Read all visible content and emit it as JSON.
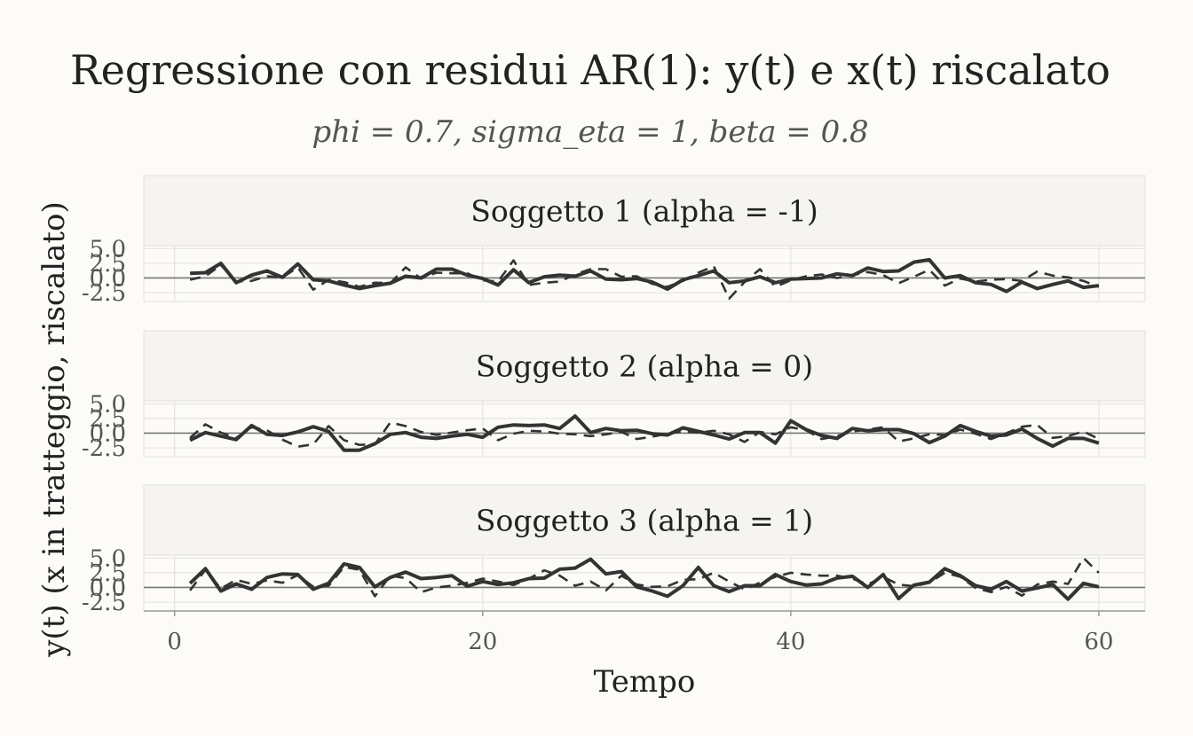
{
  "chart_data": {
    "type": "line",
    "title": "Regressione con residui AR(1): y(t) e x(t) riscalato",
    "subtitle": "phi = 0.7, sigma_eta = 1, beta = 0.8",
    "xlabel": "Tempo",
    "ylabel": "y(t)  (x in tratteggio, riscalato)",
    "xlim": [
      -2,
      63
    ],
    "x_ticks": [
      0,
      20,
      40,
      60
    ],
    "ylim": [
      -4,
      5.5
    ],
    "y_ticks": [
      -2.5,
      0.0,
      2.5,
      5.0
    ],
    "y_tick_labels": [
      "-2.5",
      "0.0",
      "2.5",
      "5.0"
    ],
    "x": [
      1,
      2,
      3,
      4,
      5,
      6,
      7,
      8,
      9,
      10,
      11,
      12,
      13,
      14,
      15,
      16,
      17,
      18,
      19,
      20,
      21,
      22,
      23,
      24,
      25,
      26,
      27,
      28,
      29,
      30,
      31,
      32,
      33,
      34,
      35,
      36,
      37,
      38,
      39,
      40,
      41,
      42,
      43,
      44,
      45,
      46,
      47,
      48,
      49,
      50,
      51,
      52,
      53,
      54,
      55,
      56,
      57,
      58,
      59,
      60
    ],
    "grid": true,
    "colors": {
      "line": "#333333",
      "background": "#fcfbf7",
      "strip": "#f5f4f0",
      "grid": "#e6e4df",
      "hline": "#777777"
    },
    "panels": [
      {
        "strip": "Soggetto 1 (alpha = -1)",
        "series": [
          {
            "style": "solid",
            "values": [
              0.8,
              0.9,
              2.5,
              -0.8,
              0.5,
              1.2,
              0.1,
              2.4,
              -0.3,
              -0.5,
              -1.2,
              -1.8,
              -1.3,
              -0.9,
              0.3,
              0.0,
              1.5,
              1.5,
              0.5,
              -0.1,
              -1.2,
              1.4,
              -0.8,
              0.2,
              0.5,
              0.3,
              1.2,
              -0.2,
              -0.3,
              -0.1,
              -0.7,
              -1.9,
              -0.3,
              0.4,
              1.2,
              -0.8,
              -0.5,
              0.2,
              -0.8,
              -0.2,
              -0.1,
              0.0,
              0.7,
              0.4,
              1.7,
              1.1,
              1.2,
              2.7,
              3.1,
              0.0,
              0.4,
              -0.8,
              -1.1,
              -2.3,
              -0.7,
              -1.8,
              -1.1,
              -0.5,
              -1.6,
              -1.3
            ]
          },
          {
            "style": "dashed",
            "values": [
              -0.3,
              0.3,
              2.2,
              -0.6,
              -0.5,
              0.3,
              0.1,
              1.8,
              -2.0,
              -0.3,
              -0.7,
              -1.5,
              -0.8,
              -0.9,
              1.8,
              -0.1,
              0.9,
              0.8,
              0.8,
              -0.4,
              -0.6,
              3.0,
              -1.2,
              -0.8,
              -0.6,
              0.6,
              1.5,
              1.5,
              0.2,
              0.3,
              -1.0,
              -1.5,
              -0.5,
              0.9,
              2.0,
              -3.5,
              -0.7,
              1.5,
              -1.5,
              -0.4,
              0.3,
              0.6,
              0.0,
              0.5,
              1.0,
              0.5,
              -0.9,
              0.2,
              1.4,
              -1.3,
              -0.1,
              -0.6,
              -0.3,
              -0.2,
              -0.5,
              1.1,
              0.4,
              0.1,
              -0.5,
              -1.5
            ]
          }
        ]
      },
      {
        "strip": "Soggetto 2 (alpha = 0)",
        "series": [
          {
            "style": "solid",
            "values": [
              -1.2,
              0.1,
              -0.5,
              -1.1,
              1.3,
              -0.2,
              -0.4,
              0.2,
              1.1,
              0.3,
              -2.9,
              -2.9,
              -1.8,
              -0.2,
              0.1,
              -0.7,
              -0.9,
              -0.5,
              -0.2,
              -0.7,
              1.0,
              1.4,
              1.3,
              1.4,
              0.8,
              2.9,
              0.1,
              0.8,
              0.4,
              0.5,
              -0.1,
              -0.3,
              0.9,
              0.3,
              -0.3,
              -1.0,
              0.1,
              0.1,
              -1.7,
              2.1,
              0.6,
              -0.4,
              -0.9,
              0.8,
              0.4,
              0.6,
              0.6,
              -0.1,
              -1.6,
              -0.5,
              1.3,
              0.3,
              -0.5,
              -0.3,
              0.7,
              -0.9,
              -2.2,
              -0.9,
              -0.9,
              -1.7
            ]
          },
          {
            "style": "dashed",
            "values": [
              -0.8,
              1.5,
              0.1,
              -0.8,
              1.0,
              0.5,
              -1.1,
              -2.3,
              -1.9,
              1.2,
              -1.2,
              -2.0,
              -1.9,
              1.8,
              1.2,
              0.2,
              -0.3,
              0.1,
              0.5,
              0.8,
              -1.2,
              -0.1,
              0.4,
              0.3,
              -0.1,
              -0.2,
              -0.5,
              -0.2,
              0.2,
              -1.0,
              -0.6,
              -0.1,
              0.3,
              0.1,
              0.4,
              -0.2,
              -1.5,
              0.2,
              -0.2,
              1.0,
              0.5,
              -1.0,
              -0.5,
              0.3,
              0.6,
              1.0,
              -1.4,
              -0.9,
              -0.2,
              -0.3,
              0.6,
              -0.1,
              -1.0,
              0.0,
              1.1,
              1.4,
              -0.8,
              -0.5,
              0.3,
              -1.0
            ]
          }
        ]
      },
      {
        "strip": "Soggetto 3 (alpha = 1)",
        "series": [
          {
            "style": "solid",
            "values": [
              0.7,
              3.2,
              -0.6,
              0.6,
              -0.3,
              1.7,
              2.3,
              2.2,
              -0.3,
              0.7,
              4.0,
              3.4,
              0.1,
              1.7,
              2.6,
              1.5,
              1.7,
              2.0,
              0.2,
              1.0,
              0.5,
              0.8,
              1.5,
              1.6,
              3.1,
              3.3,
              4.8,
              2.3,
              2.7,
              0.1,
              -0.6,
              -1.5,
              0.3,
              3.4,
              0.3,
              -0.7,
              0.3,
              0.3,
              2.2,
              1.0,
              0.4,
              0.6,
              1.6,
              1.9,
              0.0,
              2.2,
              -1.9,
              0.4,
              0.9,
              3.2,
              2.0,
              0.3,
              -0.3,
              1.0,
              -0.6,
              -0.1,
              0.5,
              -2.0,
              0.7,
              0.1
            ]
          },
          {
            "style": "dashed",
            "values": [
              -0.5,
              3.0,
              -0.2,
              1.3,
              0.6,
              1.2,
              0.8,
              2.1,
              0.1,
              0.3,
              3.5,
              3.0,
              -1.5,
              2.0,
              1.6,
              -0.8,
              0.0,
              0.3,
              0.8,
              1.5,
              1.0,
              0.4,
              1.5,
              2.9,
              2.0,
              0.3,
              1.0,
              -0.5,
              2.0,
              0.5,
              0.1,
              0.2,
              1.3,
              1.4,
              2.5,
              1.0,
              -0.3,
              0.8,
              1.8,
              2.5,
              2.2,
              2.0,
              2.0,
              1.5,
              0.5,
              1.8,
              0.5,
              0.2,
              0.8,
              2.5,
              1.8,
              -0.1,
              -0.8,
              0.1,
              -1.4,
              0.5,
              1.0,
              0.6,
              5.0,
              2.5
            ]
          }
        ]
      }
    ]
  }
}
